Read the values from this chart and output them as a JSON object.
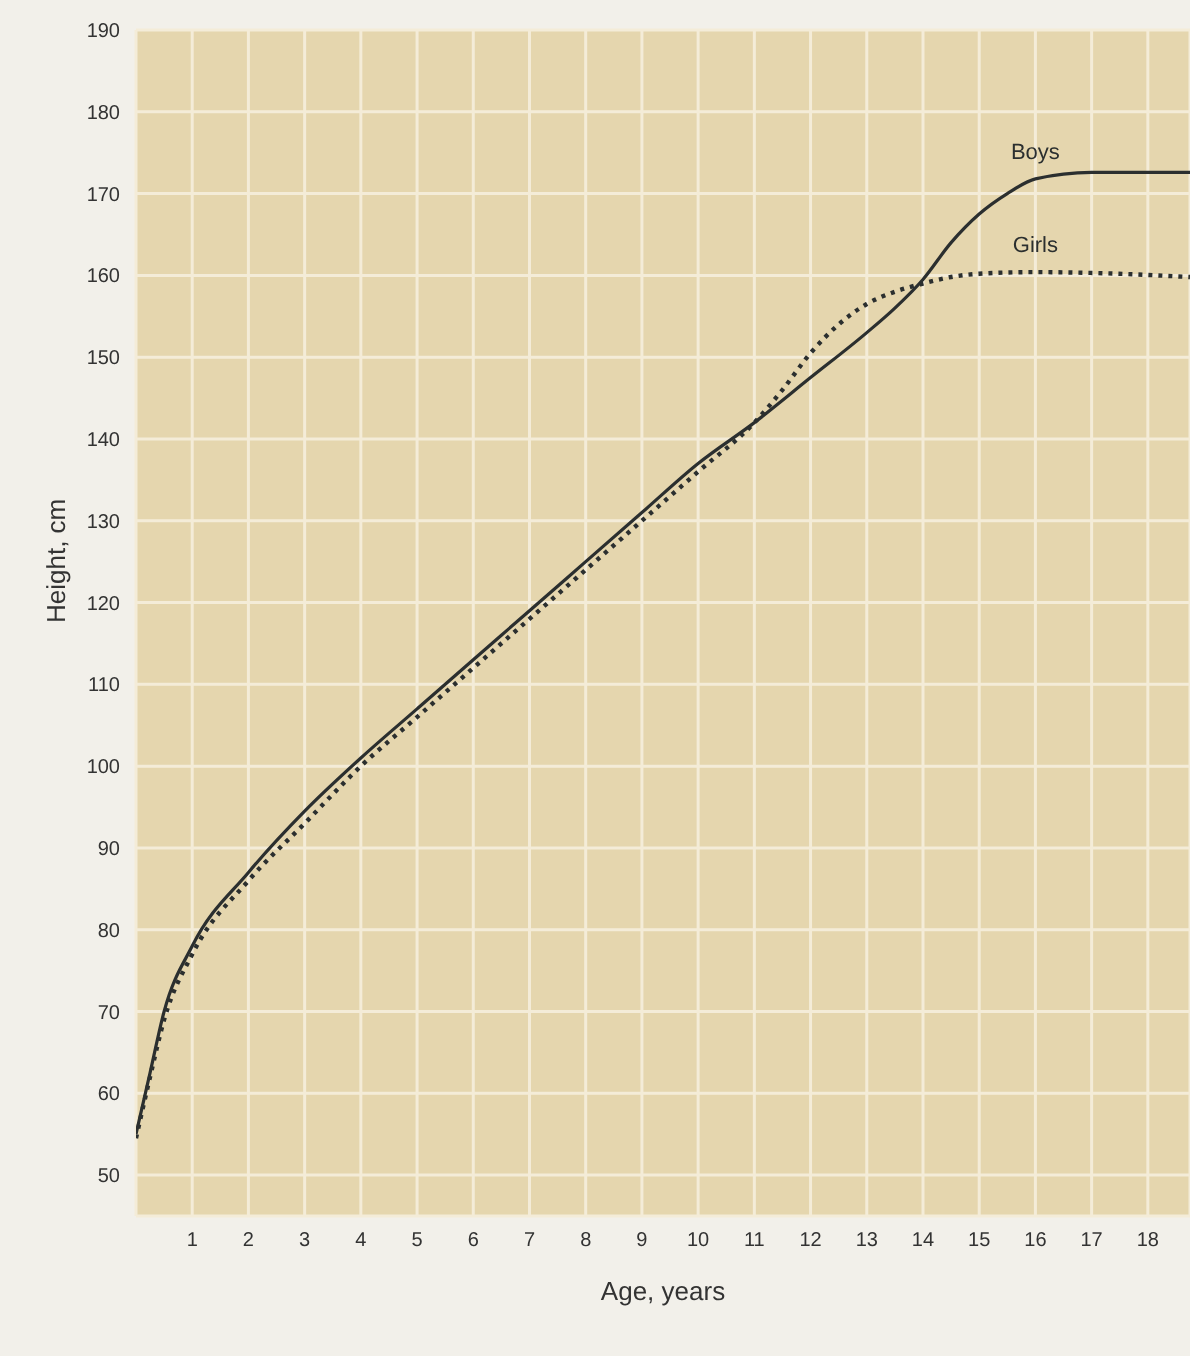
{
  "chart_data": {
    "type": "line",
    "xlabel": "Age, years",
    "ylabel": "Height, cm",
    "xlim": [
      0,
      18.75
    ],
    "xticks": [
      1,
      2,
      3,
      4,
      5,
      6,
      7,
      8,
      9,
      10,
      11,
      12,
      13,
      14,
      15,
      16,
      17,
      18
    ],
    "ylim": [
      45,
      190
    ],
    "yticks": [
      50,
      60,
      70,
      80,
      90,
      100,
      110,
      120,
      130,
      140,
      150,
      160,
      170,
      180,
      190
    ],
    "grid": true,
    "legend": false,
    "series": [
      {
        "name": "Boys",
        "color": "#2b2f2f",
        "line_style": "solid",
        "x": [
          0,
          0.25,
          0.5,
          1,
          2,
          3,
          4,
          5,
          6,
          7,
          8,
          9,
          10,
          11,
          12,
          13,
          13.5,
          14,
          14.5,
          15,
          15.5,
          16,
          17,
          18.75
        ],
        "values": [
          55,
          62.5,
          70,
          78,
          87,
          94.5,
          101,
          107,
          113,
          119,
          125,
          131,
          137,
          142,
          147.5,
          153,
          156,
          159.5,
          164,
          167.5,
          170,
          171.8,
          172.6,
          172.6
        ]
      },
      {
        "name": "Girls",
        "color": "#2b2f2f",
        "line_style": "dotted",
        "x": [
          0,
          0.25,
          0.5,
          1,
          2,
          3,
          4,
          5,
          6,
          7,
          8,
          9,
          10,
          11,
          11.5,
          12,
          12.5,
          13,
          13.5,
          14,
          14.5,
          15,
          16,
          17,
          18.75
        ],
        "values": [
          54.5,
          62,
          69,
          77,
          86,
          93,
          100,
          106,
          112,
          118,
          124,
          130,
          136,
          142,
          146,
          150.5,
          154,
          156.5,
          158,
          159,
          159.8,
          160.2,
          160.4,
          160.3,
          159.8
        ]
      }
    ]
  }
}
